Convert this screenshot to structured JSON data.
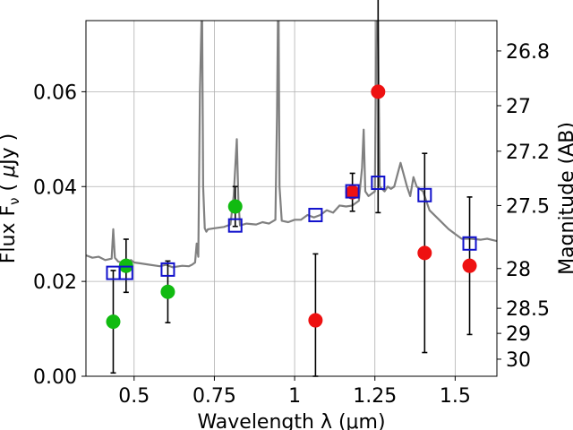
{
  "chart_data": {
    "type": "scatter",
    "xlabel": "Wavelength  λ (μm)",
    "ylabel": "Flux  F_ν  ( μJy )",
    "ylabel_parts": {
      "a": "Flux  F",
      "sub": "ν",
      "b": "  ( ",
      "mu": "μ",
      "c": "Jy )"
    },
    "y2label": "Magnitude (AB)",
    "xlim": [
      0.35,
      1.63
    ],
    "ylim": [
      0.0,
      0.075
    ],
    "grid": true,
    "xticks": [
      {
        "value": 0.5,
        "label": "0.5"
      },
      {
        "value": 0.75,
        "label": "0.75"
      },
      {
        "value": 1.0,
        "label": "1"
      },
      {
        "value": 1.25,
        "label": "1.25"
      },
      {
        "value": 1.5,
        "label": "1.5"
      }
    ],
    "yticks": [
      {
        "value": 0.0,
        "label": "0.00"
      },
      {
        "value": 0.02,
        "label": "0.02"
      },
      {
        "value": 0.04,
        "label": "0.04"
      },
      {
        "value": 0.06,
        "label": "0.06"
      }
    ],
    "y2ticks": [
      {
        "value": 26.8,
        "label": "26.8"
      },
      {
        "value": 27.0,
        "label": "27"
      },
      {
        "value": 27.2,
        "label": "27.2"
      },
      {
        "value": 27.5,
        "label": "27.5"
      },
      {
        "value": 28.0,
        "label": "28"
      },
      {
        "value": 28.5,
        "label": "28.5"
      },
      {
        "value": 29.0,
        "label": "29"
      },
      {
        "value": 30.0,
        "label": "30"
      }
    ],
    "series": [
      {
        "marker": "line",
        "color": "#808080",
        "x": [
          0.35,
          0.37,
          0.39,
          0.41,
          0.43,
          0.435,
          0.44,
          0.445,
          0.45,
          0.47,
          0.49,
          0.5,
          0.52,
          0.55,
          0.58,
          0.6,
          0.62,
          0.65,
          0.67,
          0.68,
          0.69,
          0.695,
          0.7,
          0.705,
          0.71,
          0.712,
          0.715,
          0.72,
          0.725,
          0.73,
          0.75,
          0.78,
          0.8,
          0.81,
          0.82,
          0.825,
          0.83,
          0.85,
          0.88,
          0.9,
          0.92,
          0.94,
          0.945,
          0.948,
          0.95,
          0.953,
          0.96,
          0.98,
          1.0,
          1.02,
          1.04,
          1.06,
          1.08,
          1.1,
          1.12,
          1.14,
          1.16,
          1.18,
          1.2,
          1.21,
          1.215,
          1.22,
          1.23,
          1.25,
          1.255,
          1.26,
          1.265,
          1.28,
          1.29,
          1.3,
          1.31,
          1.33,
          1.35,
          1.36,
          1.37,
          1.38,
          1.4,
          1.42,
          1.45,
          1.48,
          1.5,
          1.52,
          1.55,
          1.58,
          1.6,
          1.63
        ],
        "y": [
          0.0255,
          0.025,
          0.0252,
          0.0245,
          0.0248,
          0.031,
          0.025,
          0.0246,
          0.0242,
          0.0238,
          0.0245,
          0.024,
          0.0238,
          0.0235,
          0.0232,
          0.0235,
          0.023,
          0.0233,
          0.0232,
          0.0235,
          0.024,
          0.028,
          0.0252,
          0.06,
          0.075,
          0.075,
          0.04,
          0.0312,
          0.0305,
          0.031,
          0.0312,
          0.0315,
          0.032,
          0.038,
          0.05,
          0.037,
          0.0318,
          0.0322,
          0.032,
          0.0325,
          0.0322,
          0.033,
          0.055,
          0.075,
          0.075,
          0.04,
          0.0328,
          0.0325,
          0.033,
          0.033,
          0.034,
          0.0335,
          0.034,
          0.035,
          0.0345,
          0.036,
          0.0358,
          0.036,
          0.037,
          0.044,
          0.052,
          0.039,
          0.038,
          0.039,
          0.075,
          0.075,
          0.04,
          0.039,
          0.04,
          0.0395,
          0.04,
          0.045,
          0.04,
          0.038,
          0.042,
          0.04,
          0.039,
          0.035,
          0.033,
          0.031,
          0.03,
          0.029,
          0.029,
          0.0288,
          0.029,
          0.0285
        ]
      },
      {
        "marker": "circle",
        "color": "#11bb11",
        "x": [
          0.435,
          0.475,
          0.605,
          0.815
        ],
        "y": [
          0.0115,
          0.0233,
          0.0178,
          0.0358
        ],
        "err": [
          0.0108,
          0.0056,
          0.0065,
          0.0042
        ]
      },
      {
        "marker": "circle",
        "color": "#ee1111",
        "x": [
          1.065,
          1.18,
          1.26,
          1.405,
          1.545
        ],
        "y": [
          0.0118,
          0.0388,
          0.06,
          0.026,
          0.0233
        ],
        "err": [
          0.014,
          0.004,
          0.0255,
          0.021,
          0.0145
        ]
      },
      {
        "marker": "square",
        "color": "#1111cc",
        "x": [
          0.435,
          0.475,
          0.605,
          0.815,
          1.065,
          1.18,
          1.26,
          1.405,
          1.545
        ],
        "y": [
          0.0218,
          0.0218,
          0.0225,
          0.0318,
          0.034,
          0.039,
          0.0408,
          0.0382,
          0.028
        ]
      }
    ]
  }
}
